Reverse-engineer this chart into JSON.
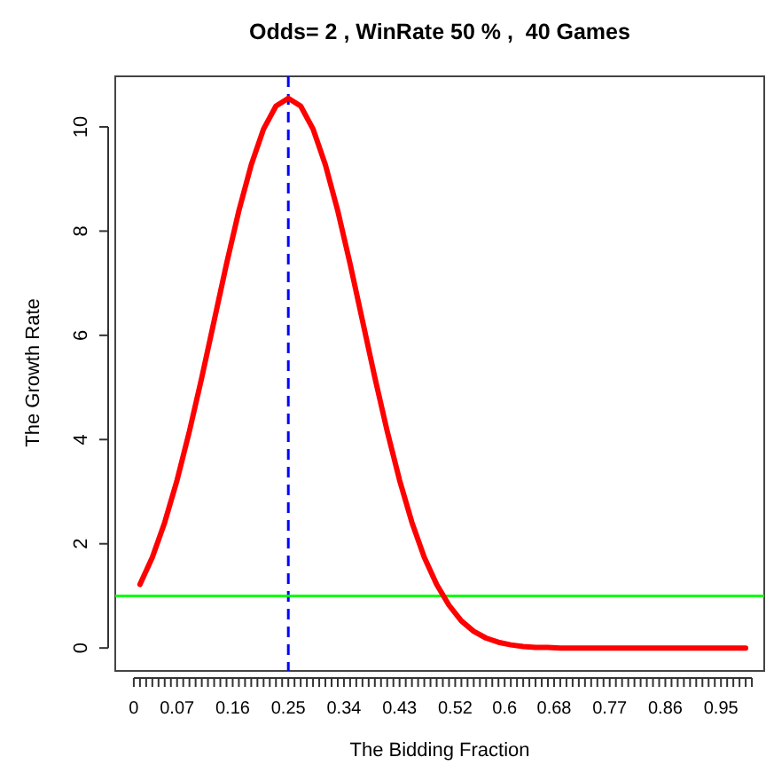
{
  "chart_data": {
    "type": "line",
    "title": "Odds= 2 , WinRate 50 % ,  40 Games",
    "xlabel": "The Bidding Fraction",
    "ylabel": "The Growth Rate",
    "x": [
      0.01,
      0.03,
      0.05,
      0.07,
      0.09,
      0.11,
      0.13,
      0.15,
      0.17,
      0.19,
      0.21,
      0.23,
      0.25,
      0.27,
      0.29,
      0.31,
      0.33,
      0.35,
      0.37,
      0.39,
      0.41,
      0.43,
      0.45,
      0.47,
      0.49,
      0.51,
      0.53,
      0.55,
      0.57,
      0.59,
      0.61,
      0.63,
      0.65,
      0.67,
      0.69,
      0.71,
      0.75,
      0.8,
      0.85,
      0.9,
      0.95,
      0.99
    ],
    "series": [
      {
        "color": "#ff0000",
        "values": [
          1.22,
          1.74,
          2.41,
          3.22,
          4.16,
          5.19,
          6.28,
          7.37,
          8.39,
          9.27,
          9.96,
          10.4,
          10.55,
          10.4,
          9.96,
          9.27,
          8.39,
          7.37,
          6.28,
          5.19,
          4.16,
          3.22,
          2.41,
          1.74,
          1.22,
          0.82,
          0.52,
          0.32,
          0.19,
          0.11,
          0.06,
          0.03,
          0.01,
          0.01,
          0,
          0,
          0,
          0,
          0,
          0,
          0,
          0
        ]
      }
    ],
    "xlim": [
      -0.03,
      1.02
    ],
    "ylim": [
      -0.44,
      10.97
    ],
    "xticks": [
      0,
      {
        "value": 0.01,
        "label": null
      },
      {
        "value": 0.02,
        "label": null
      },
      {
        "value": 0.03,
        "label": null
      },
      {
        "value": 0.04,
        "label": null
      },
      {
        "value": 0.05,
        "label": null
      },
      {
        "value": 0.06,
        "label": null
      },
      0.07,
      {
        "value": 0.08,
        "label": null
      },
      {
        "value": 0.09,
        "label": null
      },
      {
        "value": 0.1,
        "label": null
      },
      {
        "value": 0.11,
        "label": null
      },
      {
        "value": 0.12,
        "label": null
      },
      {
        "value": 0.13,
        "label": null
      },
      {
        "value": 0.14,
        "label": null
      },
      {
        "value": 0.15,
        "label": null
      },
      0.16,
      {
        "value": 0.17,
        "label": null
      },
      {
        "value": 0.18,
        "label": null
      },
      {
        "value": 0.19,
        "label": null
      },
      {
        "value": 0.2,
        "label": null
      },
      {
        "value": 0.21,
        "label": null
      },
      {
        "value": 0.22,
        "label": null
      },
      {
        "value": 0.23,
        "label": null
      },
      {
        "value": 0.24,
        "label": null
      },
      0.25,
      {
        "value": 0.26,
        "label": null
      },
      {
        "value": 0.27,
        "label": null
      },
      {
        "value": 0.28,
        "label": null
      },
      {
        "value": 0.29,
        "label": null
      },
      {
        "value": 0.3,
        "label": null
      },
      {
        "value": 0.31,
        "label": null
      },
      {
        "value": 0.32,
        "label": null
      },
      {
        "value": 0.33,
        "label": null
      },
      0.34,
      {
        "value": 0.35,
        "label": null
      },
      {
        "value": 0.36,
        "label": null
      },
      {
        "value": 0.37,
        "label": null
      },
      {
        "value": 0.38,
        "label": null
      },
      {
        "value": 0.39,
        "label": null
      },
      {
        "value": 0.4,
        "label": null
      },
      {
        "value": 0.41,
        "label": null
      },
      {
        "value": 0.42,
        "label": null
      },
      0.43,
      {
        "value": 0.44,
        "label": null
      },
      {
        "value": 0.45,
        "label": null
      },
      {
        "value": 0.46,
        "label": null
      },
      {
        "value": 0.47,
        "label": null
      },
      {
        "value": 0.48,
        "label": null
      },
      {
        "value": 0.49,
        "label": null
      },
      {
        "value": 0.5,
        "label": null
      },
      {
        "value": 0.51,
        "label": null
      },
      0.52,
      {
        "value": 0.53,
        "label": null
      },
      {
        "value": 0.54,
        "label": null
      },
      {
        "value": 0.55,
        "label": null
      },
      {
        "value": 0.56,
        "label": null
      },
      {
        "value": 0.57,
        "label": null
      },
      {
        "value": 0.58,
        "label": null
      },
      {
        "value": 0.59,
        "label": null
      },
      0.6,
      {
        "value": 0.61,
        "label": null
      },
      {
        "value": 0.62,
        "label": null
      },
      {
        "value": 0.63,
        "label": null
      },
      {
        "value": 0.64,
        "label": null
      },
      {
        "value": 0.65,
        "label": null
      },
      {
        "value": 0.66,
        "label": null
      },
      {
        "value": 0.67,
        "label": null
      },
      0.68,
      {
        "value": 0.69,
        "label": null
      },
      {
        "value": 0.7,
        "label": null
      },
      {
        "value": 0.71,
        "label": null
      },
      {
        "value": 0.72,
        "label": null
      },
      {
        "value": 0.73,
        "label": null
      },
      {
        "value": 0.74,
        "label": null
      },
      {
        "value": 0.75,
        "label": null
      },
      {
        "value": 0.76,
        "label": null
      },
      0.77,
      {
        "value": 0.78,
        "label": null
      },
      {
        "value": 0.79,
        "label": null
      },
      {
        "value": 0.8,
        "label": null
      },
      {
        "value": 0.81,
        "label": null
      },
      {
        "value": 0.82,
        "label": null
      },
      {
        "value": 0.83,
        "label": null
      },
      {
        "value": 0.84,
        "label": null
      },
      {
        "value": 0.85,
        "label": null
      },
      0.86,
      {
        "value": 0.87,
        "label": null
      },
      {
        "value": 0.88,
        "label": null
      },
      {
        "value": 0.89,
        "label": null
      },
      {
        "value": 0.9,
        "label": null
      },
      {
        "value": 0.91,
        "label": null
      },
      {
        "value": 0.92,
        "label": null
      },
      {
        "value": 0.93,
        "label": null
      },
      {
        "value": 0.94,
        "label": null
      },
      0.95,
      {
        "value": 0.96,
        "label": null
      },
      {
        "value": 0.97,
        "label": null
      },
      {
        "value": 0.98,
        "label": null
      },
      {
        "value": 0.99,
        "label": null
      },
      {
        "value": 1,
        "label": null
      }
    ],
    "yticks": [
      0,
      2,
      4,
      6,
      8,
      10
    ],
    "ref_lines": [
      {
        "axis": "x",
        "value": 0.25,
        "color": "#0000ff",
        "line_style": "dashed"
      },
      {
        "axis": "y",
        "value": 1,
        "color": "#00ff00",
        "line_style": "solid"
      }
    ],
    "grid": false,
    "marker": "none",
    "line_style": "solid"
  }
}
